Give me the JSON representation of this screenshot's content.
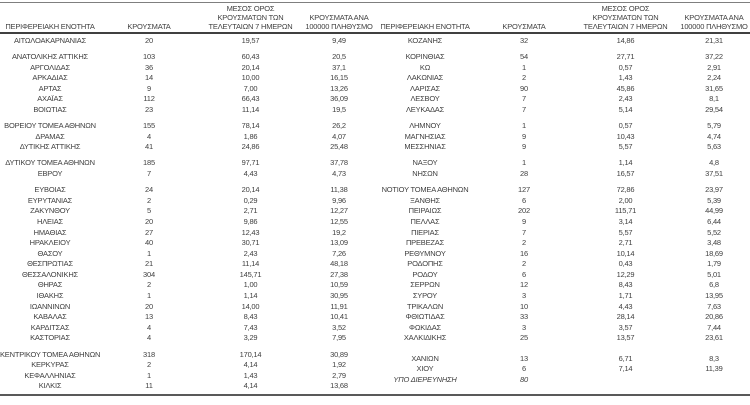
{
  "colors": {
    "background": "#ffffff",
    "text": "#3f3f3f",
    "rule_top": "#7f7f7f",
    "rule_header": "#404040",
    "rule_bottom": "#595959"
  },
  "table": {
    "columns": [
      "ΠΕΡΙΦΕΡΕΙΑΚΗ ΕΝΟΤΗΤΑ",
      "ΚΡΟΥΣΜΑΤΑ",
      "ΜΕΣΟΣ ΟΡΟΣ\nΚΡΟΥΣΜΑΤΩΝ ΤΩΝ\nΤΕΛΕΥΤΑΙΩΝ 7 ΗΜΕΡΩΝ",
      "ΚΡΟΥΣΜΑΤΑ ΑΝΑ\n100000 ΠΛΗΘΥΣΜΟ"
    ],
    "left_groups": [
      [
        {
          "region": "ΑΙΤΩΛΟΑΚΑΡΝΑΝΙΑΣ",
          "cases": "20",
          "avg": "19,57",
          "per_100k": "9,49"
        }
      ],
      [
        {
          "region": "ΑΝΑΤΟΛΙΚΗΣ ΑΤΤΙΚΗΣ",
          "cases": "103",
          "avg": "60,43",
          "per_100k": "20,5"
        },
        {
          "region": "ΑΡΓΟΛΙΔΑΣ",
          "cases": "36",
          "avg": "20,14",
          "per_100k": "37,1"
        },
        {
          "region": "ΑΡΚΑΔΙΑΣ",
          "cases": "14",
          "avg": "10,00",
          "per_100k": "16,15"
        },
        {
          "region": "ΑΡΤΑΣ",
          "cases": "9",
          "avg": "7,00",
          "per_100k": "13,26"
        },
        {
          "region": "ΑΧΑΪΑΣ",
          "cases": "112",
          "avg": "66,43",
          "per_100k": "36,09"
        },
        {
          "region": "ΒΟΙΩΤΙΑΣ",
          "cases": "23",
          "avg": "11,14",
          "per_100k": "19,5"
        }
      ],
      [
        {
          "region": "ΒΟΡΕΙΟΥ ΤΟΜΕΑ ΑΘΗΝΩΝ",
          "cases": "155",
          "avg": "78,14",
          "per_100k": "26,2"
        },
        {
          "region": "ΔΡΑΜΑΣ",
          "cases": "4",
          "avg": "1,86",
          "per_100k": "4,07"
        },
        {
          "region": "ΔΥΤΙΚΗΣ ΑΤΤΙΚΗΣ",
          "cases": "41",
          "avg": "24,86",
          "per_100k": "25,48"
        }
      ],
      [
        {
          "region": "ΔΥΤΙΚΟΥ ΤΟΜΕΑ ΑΘΗΝΩΝ",
          "cases": "185",
          "avg": "97,71",
          "per_100k": "37,78"
        },
        {
          "region": "ΕΒΡΟΥ",
          "cases": "7",
          "avg": "4,43",
          "per_100k": "4,73"
        }
      ],
      [
        {
          "region": "ΕΥΒΟΙΑΣ",
          "cases": "24",
          "avg": "20,14",
          "per_100k": "11,38"
        },
        {
          "region": "ΕΥΡΥΤΑΝΙΑΣ",
          "cases": "2",
          "avg": "0,29",
          "per_100k": "9,96"
        },
        {
          "region": "ΖΑΚΥΝΘΟΥ",
          "cases": "5",
          "avg": "2,71",
          "per_100k": "12,27"
        },
        {
          "region": "ΗΛΕΙΑΣ",
          "cases": "20",
          "avg": "9,86",
          "per_100k": "12,55"
        },
        {
          "region": "ΗΜΑΘΙΑΣ",
          "cases": "27",
          "avg": "12,43",
          "per_100k": "19,2"
        },
        {
          "region": "ΗΡΑΚΛΕΙΟΥ",
          "cases": "40",
          "avg": "30,71",
          "per_100k": "13,09"
        },
        {
          "region": "ΘΑΣΟΥ",
          "cases": "1",
          "avg": "2,43",
          "per_100k": "7,26"
        },
        {
          "region": "ΘΕΣΠΡΩΤΙΑΣ",
          "cases": "21",
          "avg": "11,14",
          "per_100k": "48,18"
        },
        {
          "region": "ΘΕΣΣΑΛΟΝΙΚΗΣ",
          "cases": "304",
          "avg": "145,71",
          "per_100k": "27,38"
        },
        {
          "region": "ΘΗΡΑΣ",
          "cases": "2",
          "avg": "1,00",
          "per_100k": "10,59"
        },
        {
          "region": "ΙΘΑΚΗΣ",
          "cases": "1",
          "avg": "1,14",
          "per_100k": "30,95"
        },
        {
          "region": "ΙΩΑΝΝΙΝΩΝ",
          "cases": "20",
          "avg": "14,00",
          "per_100k": "11,91"
        },
        {
          "region": "ΚΑΒΑΛΑΣ",
          "cases": "13",
          "avg": "8,43",
          "per_100k": "10,41"
        },
        {
          "region": "ΚΑΡΔΙΤΣΑΣ",
          "cases": "4",
          "avg": "7,43",
          "per_100k": "3,52"
        },
        {
          "region": "ΚΑΣΤΟΡΙΑΣ",
          "cases": "4",
          "avg": "3,29",
          "per_100k": "7,95"
        }
      ],
      [
        {
          "region": "ΚΕΝΤΡΙΚΟΥ ΤΟΜΕΑ ΑΘΗΝΩΝ",
          "cases": "318",
          "avg": "170,14",
          "per_100k": "30,89"
        },
        {
          "region": "ΚΕΡΚΥΡΑΣ",
          "cases": "2",
          "avg": "4,14",
          "per_100k": "1,92"
        },
        {
          "region": "ΚΕΦΑΛΛΗΝΙΑΣ",
          "cases": "1",
          "avg": "1,43",
          "per_100k": "2,79"
        },
        {
          "region": "ΚΙΛΚΙΣ",
          "cases": "11",
          "avg": "4,14",
          "per_100k": "13,68"
        }
      ]
    ],
    "right_groups": [
      [
        {
          "region": "ΚΟΖΑΝΗΣ",
          "cases": "32",
          "avg": "14,86",
          "per_100k": "21,31"
        }
      ],
      [
        {
          "region": "ΚΟΡΙΝΘΙΑΣ",
          "cases": "54",
          "avg": "27,71",
          "per_100k": "37,22"
        },
        {
          "region": "ΚΩ",
          "cases": "1",
          "avg": "0,57",
          "per_100k": "2,91"
        },
        {
          "region": "ΛΑΚΩΝΙΑΣ",
          "cases": "2",
          "avg": "1,43",
          "per_100k": "2,24"
        },
        {
          "region": "ΛΑΡΙΣΑΣ",
          "cases": "90",
          "avg": "45,86",
          "per_100k": "31,65"
        },
        {
          "region": "ΛΕΣΒΟΥ",
          "cases": "7",
          "avg": "2,43",
          "per_100k": "8,1"
        },
        {
          "region": "ΛΕΥΚΑΔΑΣ",
          "cases": "7",
          "avg": "5,14",
          "per_100k": "29,54"
        }
      ],
      [
        {
          "region": "ΛΗΜΝΟΥ",
          "cases": "1",
          "avg": "0,57",
          "per_100k": "5,79"
        },
        {
          "region": "ΜΑΓΝΗΣΙΑΣ",
          "cases": "9",
          "avg": "10,43",
          "per_100k": "4,74"
        },
        {
          "region": "ΜΕΣΣΗΝΙΑΣ",
          "cases": "9",
          "avg": "5,57",
          "per_100k": "5,63"
        }
      ],
      [
        {
          "region": "ΝΑΞΟΥ",
          "cases": "1",
          "avg": "1,14",
          "per_100k": "4,8"
        },
        {
          "region": "ΝΗΣΩΝ",
          "cases": "28",
          "avg": "16,57",
          "per_100k": "37,51"
        }
      ],
      [
        {
          "region": "ΝΟΤΙΟΥ ΤΟΜΕΑ ΑΘΗΝΩΝ",
          "cases": "127",
          "avg": "72,86",
          "per_100k": "23,97"
        },
        {
          "region": "ΞΑΝΘΗΣ",
          "cases": "6",
          "avg": "2,00",
          "per_100k": "5,39"
        },
        {
          "region": "ΠΕΙΡΑΙΩΣ",
          "cases": "202",
          "avg": "115,71",
          "per_100k": "44,99"
        },
        {
          "region": "ΠΕΛΛΑΣ",
          "cases": "9",
          "avg": "3,14",
          "per_100k": "6,44"
        },
        {
          "region": "ΠΙΕΡΙΑΣ",
          "cases": "7",
          "avg": "5,57",
          "per_100k": "5,52"
        },
        {
          "region": "ΠΡΕΒΕΖΑΣ",
          "cases": "2",
          "avg": "2,71",
          "per_100k": "3,48"
        },
        {
          "region": "ΡΕΘΥΜΝΟΥ",
          "cases": "16",
          "avg": "10,14",
          "per_100k": "18,69"
        },
        {
          "region": "ΡΟΔΟΠΗΣ",
          "cases": "2",
          "avg": "0,43",
          "per_100k": "1,79"
        },
        {
          "region": "ΡΟΔΟΥ",
          "cases": "6",
          "avg": "12,29",
          "per_100k": "5,01"
        },
        {
          "region": "ΣΕΡΡΩΝ",
          "cases": "12",
          "avg": "8,43",
          "per_100k": "6,8"
        },
        {
          "region": "ΣΥΡΟΥ",
          "cases": "3",
          "avg": "1,71",
          "per_100k": "13,95"
        },
        {
          "region": "ΤΡΙΚΑΛΩΝ",
          "cases": "10",
          "avg": "4,43",
          "per_100k": "7,63"
        },
        {
          "region": "ΦΘΙΩΤΙΔΑΣ",
          "cases": "33",
          "avg": "28,14",
          "per_100k": "20,86"
        },
        {
          "region": "ΦΩΚΙΔΑΣ",
          "cases": "3",
          "avg": "3,57",
          "per_100k": "7,44"
        },
        {
          "region": "ΧΑΛΚΙΔΙΚΗΣ",
          "cases": "25",
          "avg": "13,57",
          "per_100k": "23,61"
        }
      ],
      [
        {
          "region": "ΧΑΝΙΩΝ",
          "cases": "13",
          "avg": "6,71",
          "per_100k": "8,3"
        },
        {
          "region": "ΧΙΟΥ",
          "cases": "6",
          "avg": "7,14",
          "per_100k": "11,39"
        },
        {
          "region": "ΥΠΟ ΔΙΕΡΕΥΝΗΣΗ",
          "cases": "80",
          "avg": "",
          "per_100k": "",
          "italic": true
        }
      ]
    ]
  }
}
